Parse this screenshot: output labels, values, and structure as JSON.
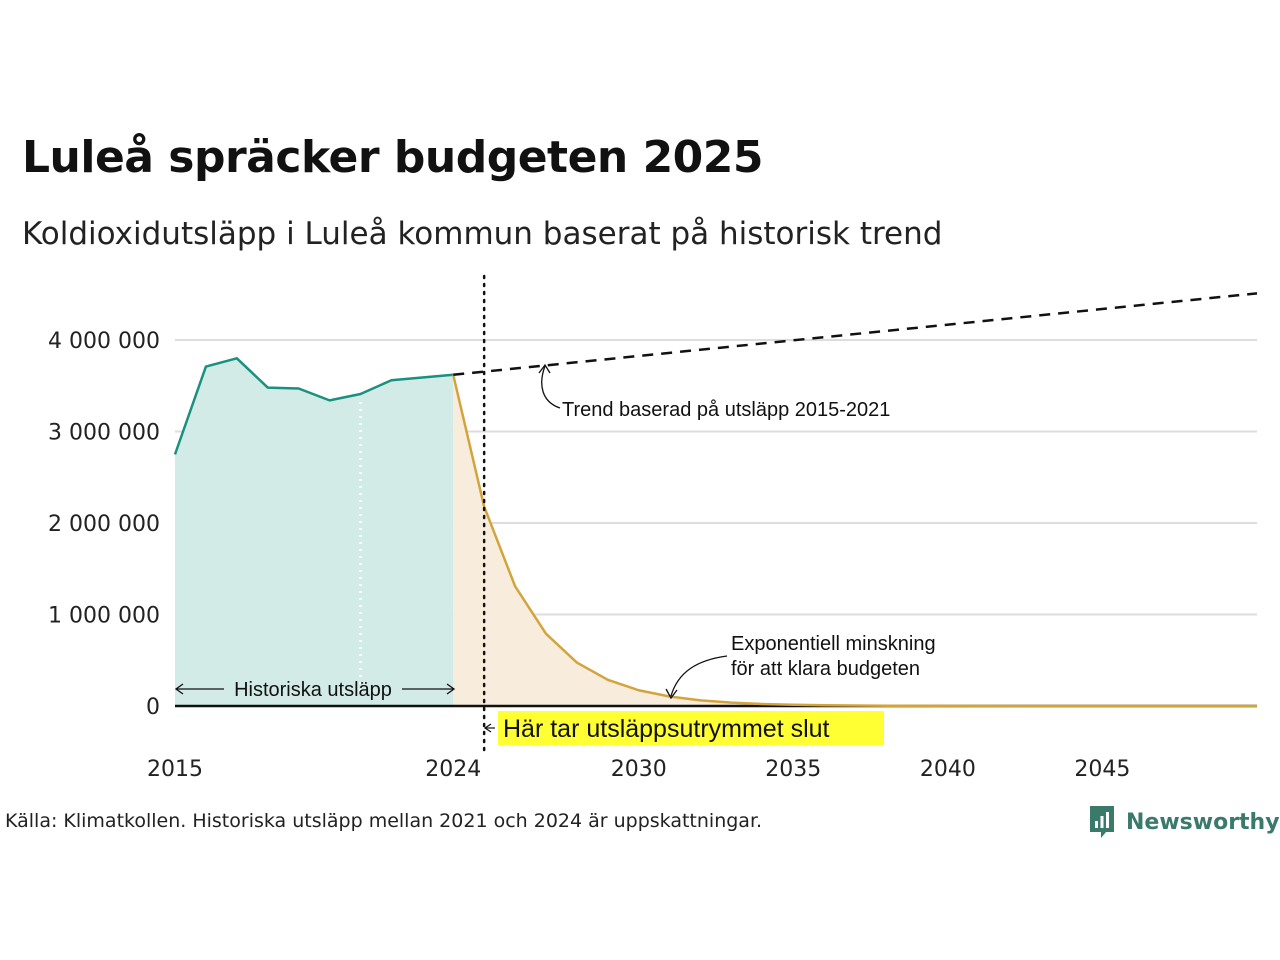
{
  "header": {
    "title": "Luleå spräcker budgeten 2025",
    "subtitle": "Koldioxidutsläpp i Luleå kommun baserat på historisk trend"
  },
  "footer": {
    "source": "Källa: Klimatkollen. Historiska utsläpp mellan 2021 och 2024 är uppskattningar.",
    "logo_text": "Newsworthy"
  },
  "colors": {
    "historical_line": "#1a9080",
    "historical_fill": "#d2ebe6",
    "reduction_line": "#d4a43c",
    "reduction_fill": "#f8ecdc",
    "trend_line": "#111111",
    "highlight": "#ffff33",
    "grid": "#dddddd",
    "logo": "#3a7a6a"
  },
  "chart_data": {
    "type": "line",
    "xlim": [
      2015,
      2050
    ],
    "ylim": [
      0,
      4000000
    ],
    "x_ticks": [
      2015,
      2024,
      2030,
      2035,
      2040,
      2045
    ],
    "y_ticks": [
      {
        "value": 0,
        "label": "0"
      },
      {
        "value": 1000000,
        "label": "1 000 000"
      },
      {
        "value": 2000000,
        "label": "2 000 000"
      },
      {
        "value": 3000000,
        "label": "3 000 000"
      },
      {
        "value": 4000000,
        "label": "4 000 000"
      }
    ],
    "grid": true,
    "series": [
      {
        "key": "historical",
        "style": "area-line",
        "x": [
          2015,
          2016,
          2017,
          2018,
          2019,
          2020,
          2021,
          2022,
          2023,
          2024
        ],
        "y": [
          2750000,
          3710000,
          3800000,
          3480000,
          3470000,
          3340000,
          3410000,
          3560000,
          3590000,
          3620000
        ]
      },
      {
        "key": "exponential_reduction",
        "style": "area-line",
        "x": [
          2024,
          2025,
          2026,
          2027,
          2028,
          2029,
          2030,
          2031,
          2032,
          2033,
          2034,
          2035,
          2036,
          2038,
          2040,
          2045,
          2050
        ],
        "y": [
          3620000,
          2180000,
          1310000,
          790000,
          475000,
          286000,
          172000,
          104000,
          62000,
          37000,
          22000,
          14000,
          8000,
          3000,
          1000,
          200,
          0
        ]
      },
      {
        "key": "trend",
        "style": "dashed",
        "x": [
          2024,
          2050
        ],
        "y": [
          3620000,
          4510000
        ]
      }
    ],
    "markers": [
      {
        "key": "budget_end",
        "x": 2025,
        "style": "dotted-vertical"
      },
      {
        "key": "interpolated",
        "x": 2021,
        "style": "dotted-vertical-white"
      }
    ],
    "annotations": {
      "historical": "Historiska utsläpp",
      "trend": "Trend baserad på utsläpp 2015-2021",
      "reduction_line1": "Exponentiell minskning",
      "reduction_line2": "för att klara budgeten",
      "budget_end": "Här tar utsläppsutrymmet slut"
    }
  }
}
